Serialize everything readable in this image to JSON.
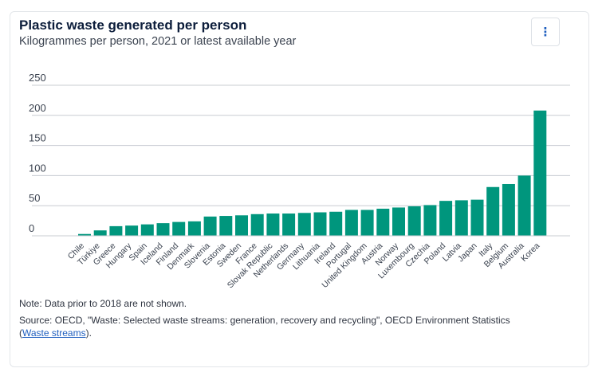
{
  "card": {
    "title": "Plastic waste generated per person",
    "subtitle": "Kilogrammes per person, 2021 or latest available year",
    "menu_icon": "⋮",
    "note": "Note: Data prior to 2018 are not shown.",
    "source_text": "Source: OECD, \"Waste: Selected waste streams: generation, recovery and recycling\", OECD Environment Statistics",
    "source_link": "Waste streams"
  },
  "colors": {
    "bar": "#00967d",
    "grid": "#c8ccd2"
  },
  "chart_data": {
    "type": "bar",
    "title": "Plastic waste generated per person",
    "subtitle": "Kilogrammes per person, 2021 or latest available year",
    "xlabel": "",
    "ylabel": "",
    "ylim": [
      0,
      250
    ],
    "yticks": [
      0,
      50,
      100,
      150,
      200,
      250
    ],
    "grid": true,
    "categories": [
      "Chile",
      "Türkiye",
      "Greece",
      "Hungary",
      "Spain",
      "Iceland",
      "Finland",
      "Denmark",
      "Slovenia",
      "Estonia",
      "Sweden",
      "France",
      "Slovak Republic",
      "Netherlands",
      "Germany",
      "Lithuania",
      "Ireland",
      "Portugal",
      "United Kingdom",
      "Austria",
      "Norway",
      "Luxembourg",
      "Czechia",
      "Poland",
      "Latvia",
      "Japan",
      "Italy",
      "Belgium",
      "Australia",
      "Korea"
    ],
    "values": [
      3,
      9,
      16,
      17,
      19,
      21,
      23,
      24,
      32,
      33,
      34,
      36,
      37,
      37,
      38,
      39,
      40,
      43,
      43,
      45,
      47,
      49,
      51,
      58,
      59,
      60,
      81,
      86,
      100,
      208
    ]
  }
}
